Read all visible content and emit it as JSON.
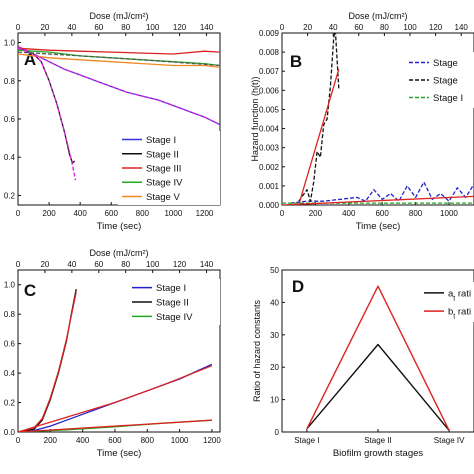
{
  "chart_data": [
    {
      "panel": "A",
      "type": "line",
      "xlabel": "Time (sec)",
      "x2label": "Dose (mJ/cm²)",
      "ylabel": "",
      "xlim": [
        0,
        1300
      ],
      "ylim": [
        0.15,
        1.05
      ],
      "x2lim": [
        0,
        150
      ],
      "xticks": [
        0,
        200,
        400,
        600,
        800,
        1000,
        1200
      ],
      "x2ticks": [
        0,
        20,
        40,
        60,
        80,
        100,
        120,
        140
      ],
      "yticks": [
        0.2,
        0.4,
        0.6,
        0.8,
        1.0
      ],
      "ytick_labels": [
        "0.2",
        "0.4",
        "0.6",
        "0.8",
        "1.0"
      ],
      "legend_position": "bottom-right",
      "series": [
        {
          "name": "Stage I",
          "color": "#3333dd",
          "style": "solid",
          "x": [
            0,
            100,
            200,
            300,
            400,
            500,
            600,
            700,
            800,
            900,
            1000,
            1100,
            1200,
            1300
          ],
          "y": [
            0.97,
            0.94,
            0.9,
            0.86,
            0.83,
            0.8,
            0.77,
            0.74,
            0.72,
            0.7,
            0.67,
            0.64,
            0.61,
            0.57
          ]
        },
        {
          "name": "Stage II",
          "color": "#111111",
          "style": "solid",
          "x": [
            0,
            100,
            150,
            200,
            250,
            300,
            330,
            350,
            365
          ],
          "y": [
            0.98,
            0.94,
            0.9,
            0.8,
            0.68,
            0.53,
            0.42,
            0.37,
            0.38
          ]
        },
        {
          "name": "Stage III",
          "color": "#dd2222",
          "style": "solid",
          "x": [
            0,
            200,
            400,
            600,
            800,
            1000,
            1200,
            1300
          ],
          "y": [
            0.97,
            0.96,
            0.955,
            0.95,
            0.945,
            0.94,
            0.955,
            0.95
          ]
        },
        {
          "name": "Stage IV",
          "color": "#22aa22",
          "style": "solid",
          "x": [
            0,
            200,
            400,
            600,
            800,
            1000,
            1200,
            1300
          ],
          "y": [
            0.96,
            0.95,
            0.93,
            0.92,
            0.91,
            0.9,
            0.89,
            0.88
          ]
        },
        {
          "name": "Stage V",
          "color": "#ee8822",
          "style": "solid",
          "x": [
            0,
            200,
            400,
            600,
            800,
            1000,
            1200,
            1300
          ],
          "y": [
            0.94,
            0.92,
            0.91,
            0.9,
            0.89,
            0.88,
            0.88,
            0.87
          ]
        },
        {
          "name": "",
          "color": "#dd22dd",
          "style": "dashed",
          "x": [
            0,
            100,
            200,
            300,
            400,
            500,
            600,
            700,
            800,
            900,
            1000,
            1100,
            1200,
            1300
          ],
          "y": [
            0.97,
            0.94,
            0.9,
            0.86,
            0.83,
            0.8,
            0.77,
            0.74,
            0.72,
            0.7,
            0.67,
            0.64,
            0.61,
            0.57
          ]
        },
        {
          "name": "",
          "color": "#dd22dd",
          "style": "dashed",
          "x": [
            0,
            100,
            150,
            200,
            250,
            300,
            340,
            370
          ],
          "y": [
            0.98,
            0.94,
            0.9,
            0.8,
            0.68,
            0.53,
            0.4,
            0.28
          ]
        },
        {
          "name": "",
          "color": "#555555",
          "style": "dashed",
          "x": [
            0,
            400,
            800,
            1300
          ],
          "y": [
            0.95,
            0.93,
            0.91,
            0.88
          ]
        }
      ]
    },
    {
      "panel": "B",
      "type": "line",
      "xlabel": "Time (sec)",
      "x2label": "Dose (mJ/cm²)",
      "ylabel": "Hazard function (h(t))",
      "xlim": [
        0,
        1150
      ],
      "ylim": [
        0,
        0.009
      ],
      "x2lim": [
        0,
        150
      ],
      "xticks": [
        0,
        200,
        400,
        600,
        800,
        1000
      ],
      "x2ticks": [
        0,
        20,
        40,
        60,
        80,
        100,
        120,
        140
      ],
      "yticks": [
        0,
        0.001,
        0.002,
        0.003,
        0.004,
        0.005,
        0.006,
        0.007,
        0.008,
        0.009
      ],
      "ytick_labels": [
        "0.000",
        "0.001",
        "0.002",
        "0.003",
        "0.004",
        "0.005",
        "0.006",
        "0.007",
        "0.008",
        "0.009"
      ],
      "legend_position": "top-right",
      "legend_labels": [
        "Stage",
        "Stage",
        "Stage I"
      ],
      "series": [
        {
          "name": "Stage",
          "color": "#2222cc",
          "style": "dashed",
          "x": [
            50,
            150,
            250,
            350,
            450,
            500,
            550,
            600,
            650,
            700,
            750,
            800,
            850,
            900,
            950,
            1000,
            1050,
            1100,
            1150
          ],
          "y": [
            0.0001,
            0.0002,
            0.0002,
            0.0003,
            0.0004,
            0.0002,
            0.0008,
            0.0003,
            0.0006,
            0.0002,
            0.001,
            0.0004,
            0.0012,
            0.0003,
            0.0006,
            0.0002,
            0.0009,
            0.0004,
            0.0011
          ]
        },
        {
          "name": "Stage",
          "color": "#111111",
          "style": "dashed",
          "x": [
            100,
            150,
            170,
            190,
            210,
            230,
            250,
            270,
            290,
            310,
            320,
            340
          ],
          "y": [
            0.0002,
            0.0008,
            0.0002,
            0.0012,
            0.0028,
            0.0025,
            0.0042,
            0.0045,
            0.0062,
            0.0088,
            0.0091,
            0.0061
          ]
        },
        {
          "name": "Stage I",
          "color": "#22aa22",
          "style": "dashed",
          "x": [
            0,
            300,
            600,
            900,
            1150
          ],
          "y": [
            0.0001,
            0.0001,
            0.0001,
            0.0001,
            0.0001
          ]
        },
        {
          "name": "",
          "color": "#dd2222",
          "style": "solid",
          "x": [
            100,
            340
          ],
          "y": [
            0,
            0.0071
          ]
        },
        {
          "name": "",
          "color": "#dd2222",
          "style": "solid",
          "x": [
            0,
            1150
          ],
          "y": [
            0,
            0.00045
          ]
        }
      ]
    },
    {
      "panel": "C",
      "type": "line",
      "xlabel": "Time (sec)",
      "x2label": "Dose (mJ/cm²)",
      "ylabel": "",
      "xlim": [
        0,
        1250
      ],
      "ylim": [
        0,
        1.1
      ],
      "x2lim": [
        0,
        150
      ],
      "xticks": [
        0,
        200,
        400,
        600,
        800,
        1000,
        1200
      ],
      "x2ticks": [
        0,
        20,
        40,
        60,
        80,
        100,
        120,
        140
      ],
      "yticks": [
        0,
        0.2,
        0.4,
        0.6,
        0.8,
        1.0
      ],
      "ytick_labels": [
        "0.0",
        "0.2",
        "0.4",
        "0.6",
        "0.8",
        "1.0"
      ],
      "legend_position": "top-right",
      "series": [
        {
          "name": "Stage I",
          "color": "#2222cc",
          "style": "solid",
          "x": [
            0,
            100,
            200,
            300,
            400,
            500,
            600,
            700,
            800,
            900,
            1000,
            1100,
            1200
          ],
          "y": [
            0,
            0.01,
            0.04,
            0.08,
            0.12,
            0.16,
            0.2,
            0.24,
            0.28,
            0.32,
            0.36,
            0.41,
            0.46
          ]
        },
        {
          "name": "Stage II",
          "color": "#111111",
          "style": "solid",
          "x": [
            0,
            100,
            150,
            200,
            250,
            300,
            330,
            360
          ],
          "y": [
            0,
            0.02,
            0.08,
            0.22,
            0.4,
            0.62,
            0.8,
            0.97
          ]
        },
        {
          "name": "Stage IV",
          "color": "#22aa22",
          "style": "solid",
          "x": [
            0,
            300,
            600,
            900,
            1200
          ],
          "y": [
            0,
            0.015,
            0.035,
            0.06,
            0.08
          ]
        },
        {
          "name": "",
          "color": "#dd2222",
          "style": "solid",
          "x": [
            0,
            100,
            150,
            200,
            250,
            300,
            330,
            360
          ],
          "y": [
            0,
            0.03,
            0.09,
            0.23,
            0.41,
            0.63,
            0.79,
            0.95
          ]
        },
        {
          "name": "",
          "color": "#dd2222",
          "style": "solid",
          "x": [
            0,
            300,
            600,
            900,
            1200
          ],
          "y": [
            0,
            0.1,
            0.2,
            0.32,
            0.45
          ]
        },
        {
          "name": "",
          "color": "#dd2222",
          "style": "solid",
          "x": [
            0,
            1200
          ],
          "y": [
            0,
            0.08
          ]
        }
      ]
    },
    {
      "panel": "D",
      "type": "line",
      "xlabel": "Biofilm growth stages",
      "ylabel": "Ratio of hazard constants",
      "categories": [
        "Stage I",
        "Stage II",
        "Stage IV"
      ],
      "ylim": [
        0,
        50
      ],
      "yticks": [
        0,
        10,
        20,
        30,
        40,
        50
      ],
      "ytick_labels": [
        "0",
        "10",
        "20",
        "30",
        "40",
        "50"
      ],
      "legend_position": "top-right",
      "series": [
        {
          "name": "a",
          "subscript": "t",
          "suffix": " rati",
          "color": "#111111",
          "values": [
            1,
            27,
            0.5
          ]
        },
        {
          "name": "b",
          "subscript": "t",
          "suffix": " rati",
          "color": "#dd2222",
          "values": [
            1,
            45,
            0.5
          ]
        }
      ]
    }
  ]
}
